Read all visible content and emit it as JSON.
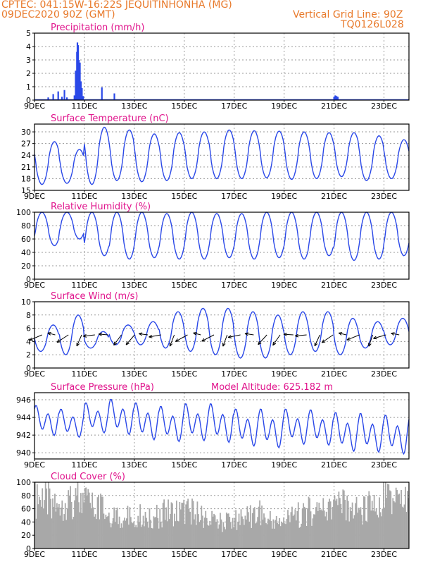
{
  "header": {
    "left_line1": "CPTEC:  041:15W-16:22S  JEQUITINHONHA (MG)",
    "left_line2": "09DEC2020 90Z (GMT)",
    "right_line1": "Vertical Grid Line: 90Z",
    "right_line2": "TQ0126L028"
  },
  "colors": {
    "header": "#e8792a",
    "title": "#e0148c",
    "series": "#2a48e8",
    "cloud": "#a8a8a8",
    "axis": "#000000",
    "grid": "#9a9a9a"
  },
  "x_ticks": [
    "9DEC",
    "11DEC",
    "13DEC",
    "15DEC",
    "17DEC",
    "19DEC",
    "21DEC",
    "23DEC"
  ],
  "x_range_days": [
    0,
    15
  ],
  "chart_data": [
    {
      "id": "precip",
      "type": "bar",
      "title": "Precipitation (mm/h)",
      "ylim": [
        0,
        5
      ],
      "yticks": [
        0,
        1,
        2,
        3,
        4,
        5
      ],
      "spikes": [
        [
          0.55,
          0.2
        ],
        [
          0.75,
          0.45
        ],
        [
          0.95,
          0.65
        ],
        [
          1.1,
          0.25
        ],
        [
          1.2,
          0.75
        ],
        [
          1.3,
          0.2
        ],
        [
          1.6,
          0.35
        ],
        [
          1.65,
          2.2
        ],
        [
          1.7,
          3.6
        ],
        [
          1.72,
          4.3
        ],
        [
          1.75,
          4.1
        ],
        [
          1.78,
          3.0
        ],
        [
          1.82,
          2.8
        ],
        [
          1.86,
          1.4
        ],
        [
          1.9,
          0.9
        ],
        [
          1.95,
          0.3
        ],
        [
          2.7,
          0.95
        ],
        [
          3.2,
          0.5
        ],
        [
          12.0,
          0.25
        ],
        [
          12.05,
          0.35
        ],
        [
          12.1,
          0.3
        ],
        [
          12.15,
          0.25
        ]
      ]
    },
    {
      "id": "temp",
      "type": "line",
      "title": "Surface Temperature (nC)",
      "ylim": [
        15,
        32
      ],
      "yticks": [
        15,
        18,
        21,
        24,
        27,
        30
      ],
      "peak_hour": 0.8,
      "daily": [
        [
          16.5,
          27.5
        ],
        [
          16.8,
          25.5
        ],
        [
          16.5,
          31.2
        ],
        [
          17.5,
          30.5
        ],
        [
          17.2,
          29.5
        ],
        [
          17.5,
          29.8
        ],
        [
          18.0,
          30.0
        ],
        [
          18.0,
          30.5
        ],
        [
          18.0,
          30.3
        ],
        [
          18.2,
          30.2
        ],
        [
          17.8,
          30.0
        ],
        [
          18.0,
          29.8
        ],
        [
          18.5,
          29.8
        ],
        [
          17.5,
          29.0
        ],
        [
          18.0,
          28.0
        ]
      ]
    },
    {
      "id": "rh",
      "type": "line",
      "title": "Relative Humidity (%)",
      "ylim": [
        0,
        100
      ],
      "yticks": [
        0,
        20,
        40,
        60,
        80,
        100
      ],
      "peak_hour": 0.3,
      "daily": [
        [
          50,
          100
        ],
        [
          60,
          100
        ],
        [
          35,
          100
        ],
        [
          30,
          100
        ],
        [
          32,
          100
        ],
        [
          30,
          98
        ],
        [
          30,
          100
        ],
        [
          32,
          98
        ],
        [
          30,
          98
        ],
        [
          32,
          100
        ],
        [
          30,
          100
        ],
        [
          35,
          100
        ],
        [
          28,
          100
        ],
        [
          30,
          100
        ],
        [
          35,
          100
        ]
      ]
    },
    {
      "id": "wind",
      "type": "line",
      "title": "Surface Wind (m/s)",
      "ylim": [
        0,
        10
      ],
      "yticks": [
        0,
        2,
        4,
        6,
        8,
        10
      ],
      "peak_hour": 0.75,
      "daily": [
        [
          2.5,
          6.5
        ],
        [
          2.0,
          8.0
        ],
        [
          3.0,
          5.5
        ],
        [
          3.5,
          6.5
        ],
        [
          3.5,
          7.0
        ],
        [
          3.0,
          8.5
        ],
        [
          2.5,
          9.0
        ],
        [
          2.0,
          9.0
        ],
        [
          1.5,
          8.5
        ],
        [
          1.5,
          8.0
        ],
        [
          2.0,
          8.5
        ],
        [
          2.5,
          8.5
        ],
        [
          2.0,
          7.5
        ],
        [
          3.0,
          7.0
        ],
        [
          3.5,
          7.5
        ]
      ],
      "arrow_level": 5
    },
    {
      "id": "press",
      "type": "line",
      "title": "Surface Pressure (hPa)",
      "extra_title": "Model Altitude: 625.182 m",
      "ylim": [
        939.3,
        946.8
      ],
      "yticks": [
        940,
        942,
        944,
        946
      ],
      "semidiurnal": true,
      "amplitude": [
        1.7,
        1.6,
        1.7,
        2.0,
        2.1,
        2.0,
        2.1,
        2.2,
        2.1,
        2.2,
        2.0,
        2.0,
        2.2,
        2.2,
        2.2
      ],
      "mean": [
        943.6,
        943.3,
        943.9,
        944.0,
        943.5,
        943.2,
        943.4,
        943.3,
        942.8,
        942.7,
        942.9,
        942.8,
        942.3,
        942.2,
        942.0
      ]
    },
    {
      "id": "cloud",
      "type": "bar",
      "title": "Cloud Cover (%)",
      "ylim": [
        0,
        100
      ],
      "yticks": [
        0,
        20,
        40,
        60,
        80,
        100
      ],
      "envelope": [
        [
          0,
          92
        ],
        [
          1,
          95
        ],
        [
          1.5,
          100
        ],
        [
          2,
          92
        ],
        [
          2.4,
          80
        ],
        [
          2.9,
          70
        ],
        [
          3.3,
          55
        ],
        [
          4.0,
          62
        ],
        [
          4.8,
          60
        ],
        [
          5.4,
          70
        ],
        [
          6.0,
          72
        ],
        [
          6.5,
          65
        ],
        [
          7.0,
          50
        ],
        [
          7.6,
          45
        ],
        [
          8.4,
          60
        ],
        [
          9.0,
          65
        ],
        [
          9.5,
          48
        ],
        [
          10.2,
          55
        ],
        [
          10.8,
          70
        ],
        [
          11.4,
          75
        ],
        [
          12.0,
          85
        ],
        [
          12.5,
          80
        ],
        [
          13.0,
          70
        ],
        [
          13.6,
          90
        ],
        [
          14.2,
          98
        ],
        [
          15,
          90
        ]
      ]
    }
  ]
}
